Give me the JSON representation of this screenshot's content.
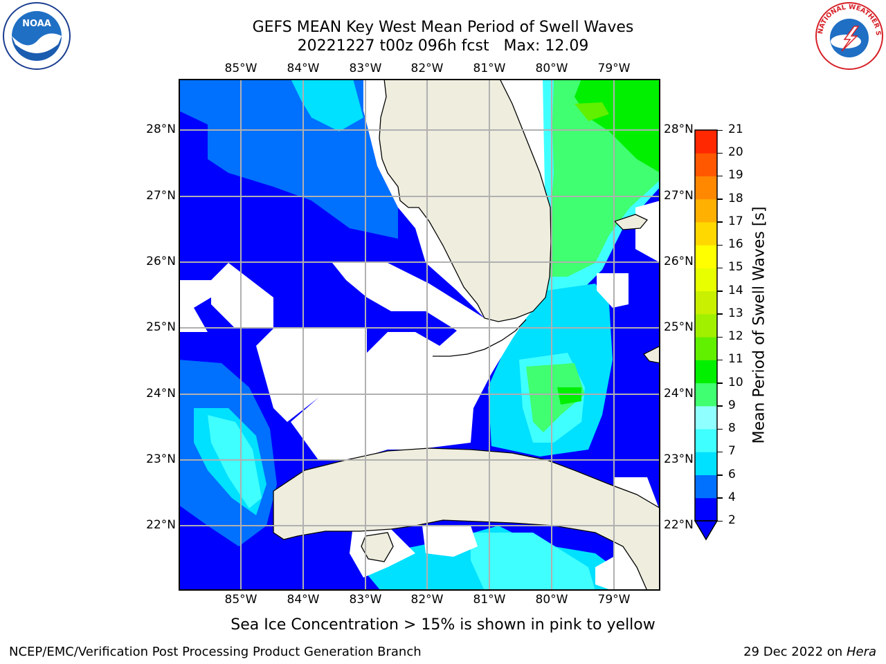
{
  "title_line1": "GEFS MEAN Key West Mean Period of Swell Waves",
  "title_line2": "20221227 t00z 096h fcst   Max: 12.09",
  "map": {
    "lon_ticks": [
      "85°W",
      "84°W",
      "83°W",
      "82°W",
      "81°W",
      "80°W",
      "79°W"
    ],
    "lat_ticks": [
      "28°N",
      "27°N",
      "26°N",
      "25°N",
      "24°N",
      "23°N",
      "22°N"
    ],
    "land_color": "#eeedde",
    "gridline_color": "#b0b0b0"
  },
  "colorbar": {
    "label": "Mean Period of Swell Waves [s]",
    "ticks": [
      "2",
      "4",
      "6",
      "7",
      "8",
      "9",
      "10",
      "11",
      "12",
      "13",
      "14",
      "15",
      "16",
      "17",
      "18",
      "19",
      "20",
      "21"
    ],
    "colors": [
      "#0000ff",
      "#0070ff",
      "#00e0ff",
      "#40ffff",
      "#90ffff",
      "#40ff70",
      "#00f000",
      "#60f000",
      "#a0f000",
      "#c8f000",
      "#e8ff00",
      "#ffff00",
      "#ffd800",
      "#ffb000",
      "#ff8800",
      "#ff5800",
      "#ff2800",
      "#ff0000"
    ]
  },
  "logos": {
    "left_icon": "noaa-logo-icon",
    "left_text": "NOAA",
    "right_icon": "nws-logo-icon",
    "right_text": "NATIONAL WEATHER SERVICE"
  },
  "note": "Sea Ice Concentration > 15% is shown in pink to yellow",
  "footer_left": "NCEP/EMC/Verification Post Processing Product Generation Branch",
  "footer_date": "29 Dec 2022 on",
  "footer_host": "Hera"
}
